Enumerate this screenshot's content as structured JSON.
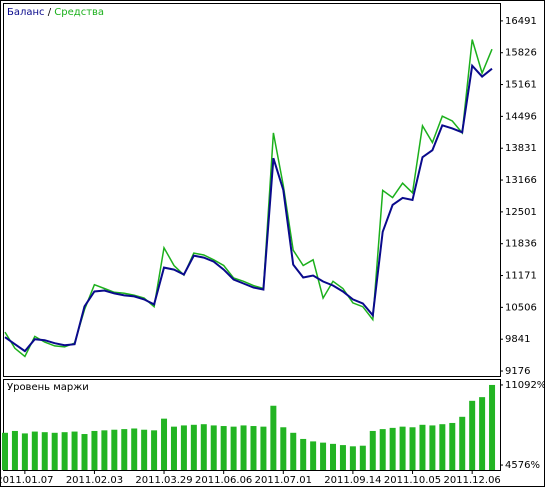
{
  "chart_data": [
    {
      "type": "line",
      "legend_separator": "/",
      "ylim": [
        9072,
        16844
      ],
      "yticks": [
        9176,
        9841,
        10506,
        11171,
        11836,
        12501,
        13166,
        13831,
        14496,
        15161,
        15826,
        16491
      ],
      "series": [
        {
          "name": "Баланс",
          "color": "#0a0a8c",
          "values": [
            9883,
            9737,
            9592,
            9841,
            9820,
            9758,
            9716,
            9737,
            10527,
            10838,
            10859,
            10797,
            10755,
            10734,
            10672,
            10568,
            11337,
            11296,
            11192,
            11587,
            11545,
            11462,
            11296,
            11088,
            11005,
            10922,
            10880,
            13623,
            12958,
            11400,
            11129,
            11171,
            11046,
            10963,
            10838,
            10672,
            10589,
            10340,
            12085,
            12646,
            12792,
            12750,
            13644,
            13789,
            14309,
            14246,
            14163,
            15555,
            15327,
            15493
          ]
        },
        {
          "name": "Средства",
          "color": "#1cb01c",
          "values": [
            9990,
            9650,
            9480,
            9900,
            9780,
            9700,
            9680,
            9760,
            10460,
            10980,
            10900,
            10820,
            10800,
            10760,
            10700,
            10520,
            11750,
            11380,
            11180,
            11640,
            11600,
            11500,
            11380,
            11120,
            11050,
            10960,
            10900,
            14150,
            13050,
            11700,
            11380,
            11500,
            10700,
            11050,
            10900,
            10600,
            10520,
            10250,
            12950,
            12800,
            13100,
            12900,
            14300,
            13950,
            14500,
            14400,
            14150,
            16100,
            15400,
            15900
          ]
        }
      ]
    },
    {
      "type": "bar",
      "title": "Уровень маржи",
      "color": "#22b422",
      "ylim": [
        4174,
        11494
      ],
      "yticks": [
        {
          "value": 4576,
          "label": "4576%"
        },
        {
          "value": 11092,
          "label": "11092%"
        }
      ],
      "categories": [
        null,
        null,
        "2011.01.07",
        null,
        null,
        null,
        null,
        null,
        null,
        "2011.02.03",
        null,
        null,
        null,
        null,
        null,
        null,
        "2011.03.29",
        null,
        null,
        null,
        null,
        null,
        "2011.06.06",
        null,
        null,
        null,
        null,
        null,
        "2011.07.01",
        null,
        null,
        null,
        null,
        null,
        null,
        "2011.09.14",
        null,
        null,
        null,
        null,
        null,
        "2011.10.05",
        null,
        null,
        null,
        null,
        null,
        "2011.12.06",
        null,
        null
      ],
      "values": [
        7200,
        7350,
        7150,
        7300,
        7250,
        7200,
        7250,
        7300,
        7100,
        7350,
        7400,
        7450,
        7500,
        7550,
        7450,
        7400,
        8350,
        7700,
        7800,
        7850,
        7900,
        7800,
        7750,
        7700,
        7800,
        7750,
        7700,
        9400,
        7650,
        7200,
        6700,
        6500,
        6400,
        6300,
        6200,
        6100,
        6150,
        7350,
        7500,
        7600,
        7700,
        7650,
        7850,
        7800,
        7900,
        8000,
        8500,
        9800,
        10100,
        11092
      ]
    }
  ]
}
